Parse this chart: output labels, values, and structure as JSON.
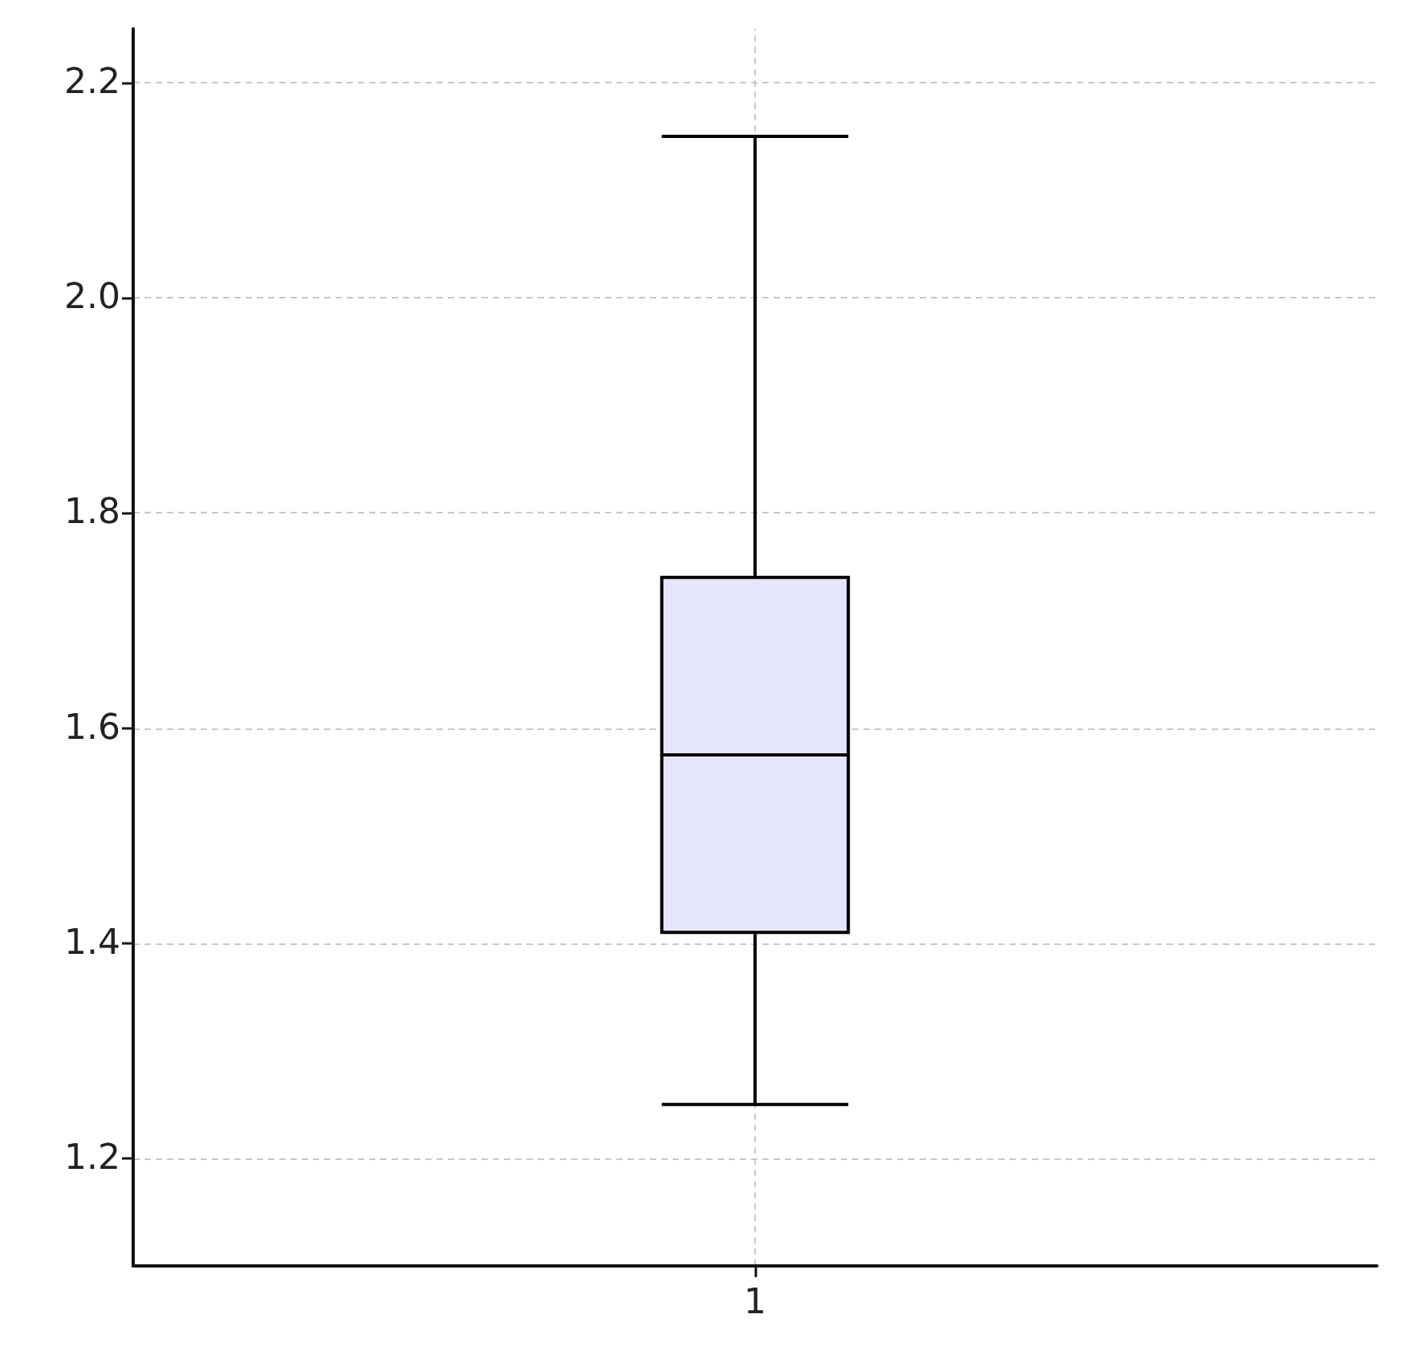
{
  "chart_data": {
    "type": "box",
    "categories": [
      "1"
    ],
    "series": [
      {
        "color": "#e6e6fa",
        "boxes": [
          {
            "low": 1.25,
            "q1": 1.41,
            "median": 1.575,
            "q3": 1.74,
            "high": 2.15
          }
        ]
      }
    ],
    "ylim": [
      1.1,
      2.25
    ],
    "yticks": [
      1.2,
      1.4,
      1.6,
      1.8,
      {
        "value": 2,
        "label": "2.0"
      },
      2.2
    ],
    "grid": true
  }
}
